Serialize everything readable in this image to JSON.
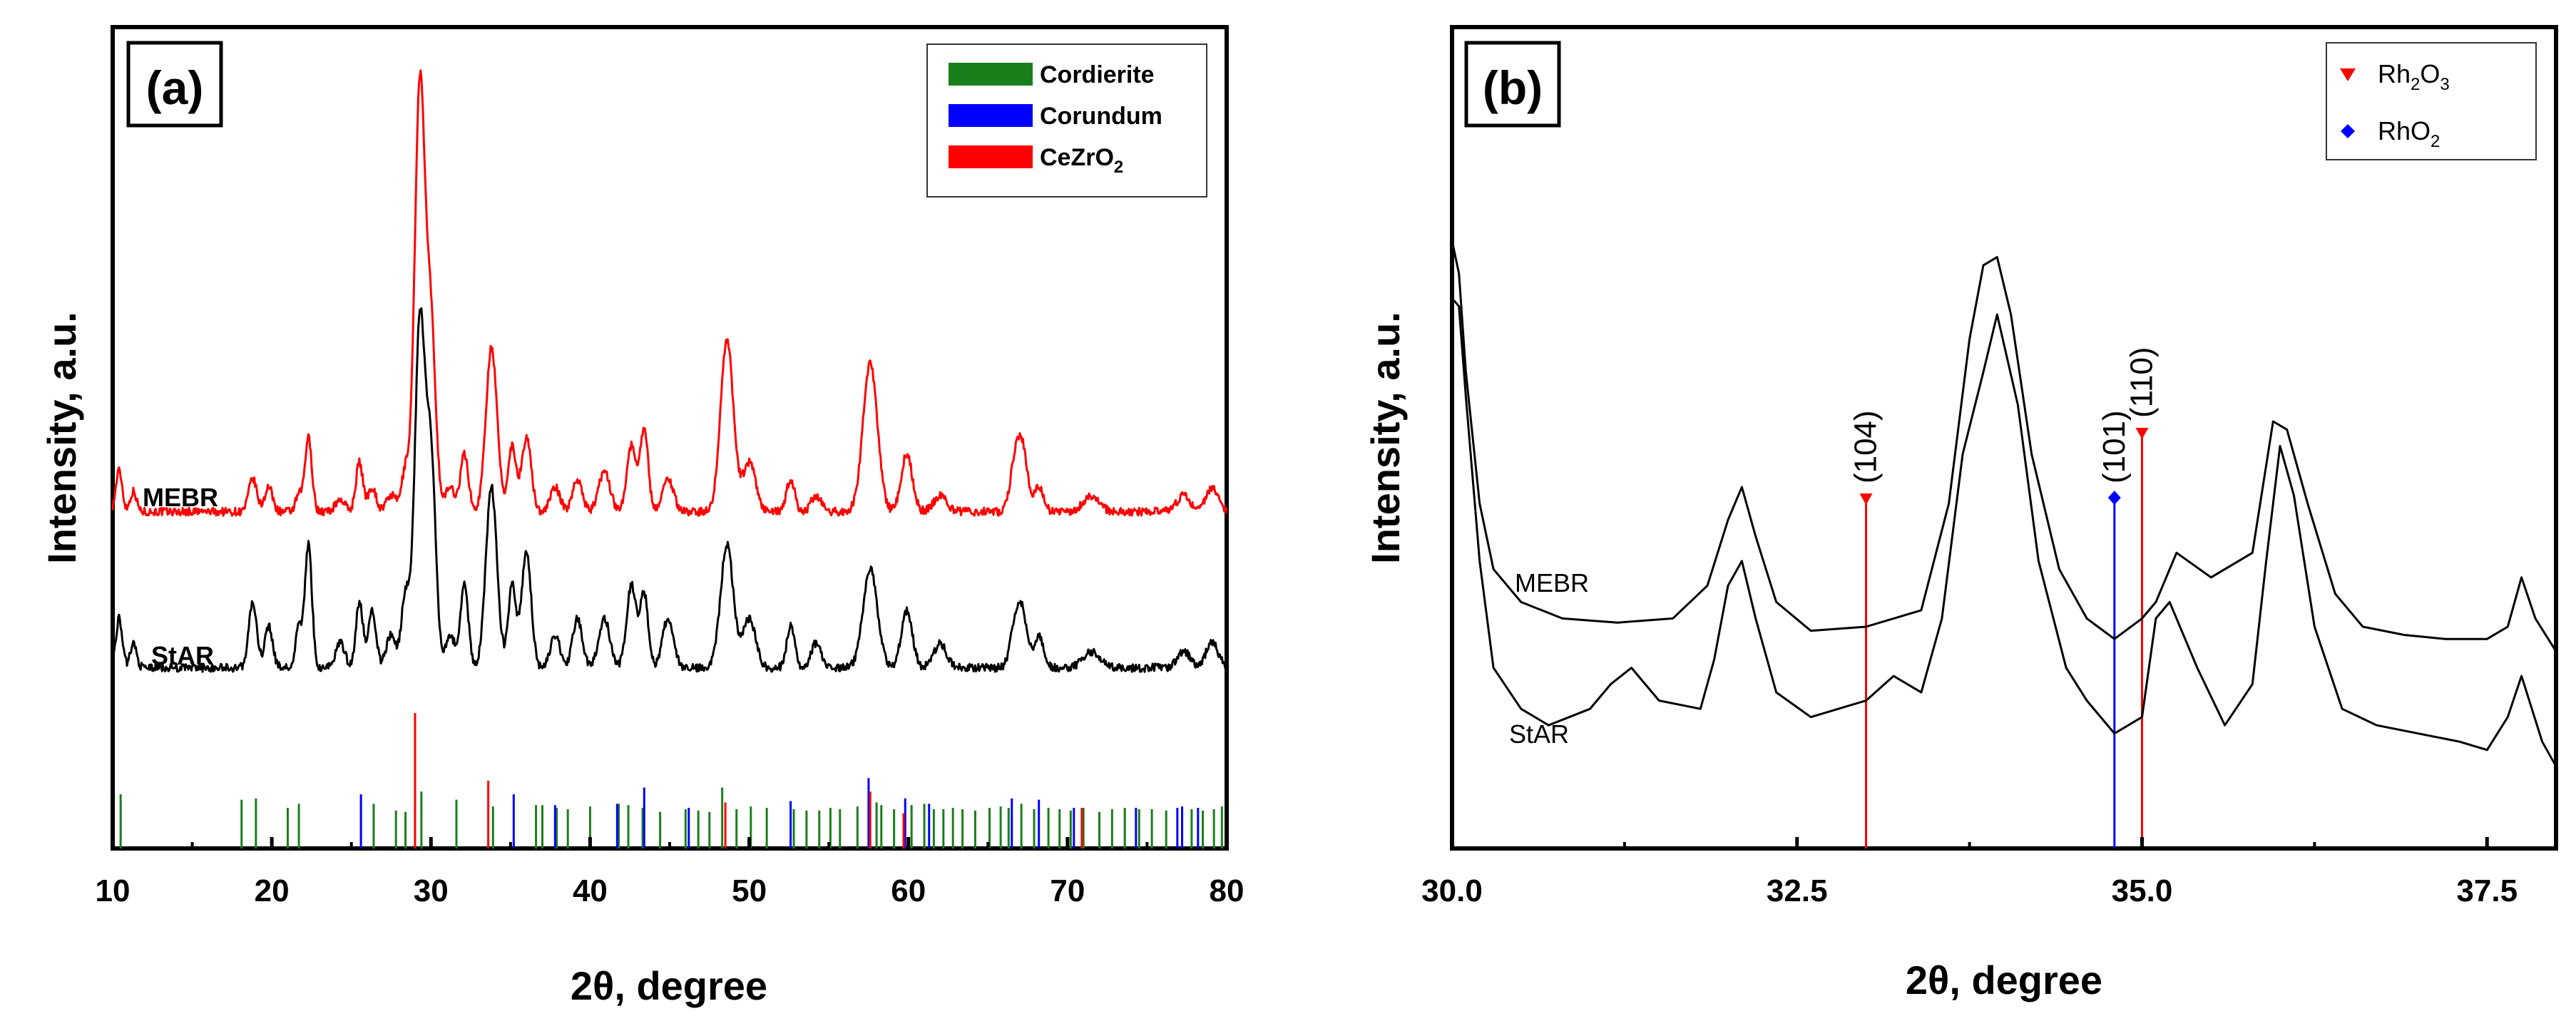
{
  "chart_data": [
    {
      "type": "line",
      "panel_label": "(a)",
      "xlabel": "2θ, degree",
      "ylabel": "Intensity, a.u.",
      "xlim": [
        10,
        80
      ],
      "ylim": [
        0,
        100
      ],
      "xticks": [
        10,
        20,
        30,
        40,
        50,
        60,
        70,
        80
      ],
      "xtick_labels": [
        "10",
        "20",
        "30",
        "40",
        "50",
        "60",
        "70",
        "80"
      ],
      "legend": [
        {
          "name": "Cordierite",
          "color": "#1a7f1a"
        },
        {
          "name": "Corundum",
          "color": "#0000ff"
        },
        {
          "name": "CeZrO",
          "sub": "2",
          "color": "#ff0000"
        }
      ],
      "legend_position": "top-right",
      "series": [
        {
          "name": "MEBR",
          "color": "#ff0000",
          "baseline": 41,
          "peaks": [
            [
              10.4,
              5,
              0.2
            ],
            [
              11.3,
              2.5,
              0.2
            ],
            [
              18.8,
              4,
              0.25
            ],
            [
              19.8,
              3,
              0.25
            ],
            [
              21.7,
              2,
              0.2
            ],
            [
              22.3,
              9,
              0.22
            ],
            [
              24.3,
              1.5,
              0.3
            ],
            [
              25.5,
              6,
              0.22
            ],
            [
              26.3,
              3,
              0.25
            ],
            [
              27.5,
              2,
              0.3
            ],
            [
              28.4,
              5,
              0.25
            ],
            [
              29.3,
              52,
              0.32
            ],
            [
              30.0,
              22,
              0.3
            ],
            [
              31.2,
              3,
              0.3
            ],
            [
              32.1,
              7,
              0.25
            ],
            [
              33.8,
              20,
              0.35
            ],
            [
              35.1,
              8,
              0.25
            ],
            [
              36.0,
              9,
              0.3
            ],
            [
              37.8,
              3,
              0.3
            ],
            [
              39.2,
              4,
              0.3
            ],
            [
              40.9,
              5,
              0.35
            ],
            [
              42.6,
              8,
              0.3
            ],
            [
              43.4,
              10,
              0.25
            ],
            [
              44.9,
              4,
              0.35
            ],
            [
              48.6,
              21,
              0.4
            ],
            [
              50.0,
              6,
              0.4
            ],
            [
              52.6,
              4,
              0.25
            ],
            [
              54.2,
              2,
              0.3
            ],
            [
              57.6,
              18,
              0.45
            ],
            [
              59.9,
              7,
              0.35
            ],
            [
              62.0,
              2,
              0.4
            ],
            [
              66.7,
              6,
              0.3
            ],
            [
              67.2,
              7,
              0.3
            ],
            [
              68.2,
              3,
              0.3
            ],
            [
              71.5,
              2,
              0.5
            ],
            [
              77.3,
              2,
              0.4
            ],
            [
              79.1,
              3,
              0.4
            ]
          ]
        },
        {
          "name": "StAR",
          "color": "#000000",
          "baseline": 22,
          "peaks": [
            [
              10.4,
              6,
              0.2
            ],
            [
              11.3,
              3,
              0.2
            ],
            [
              18.8,
              8,
              0.25
            ],
            [
              19.8,
              5,
              0.25
            ],
            [
              21.7,
              5,
              0.2
            ],
            [
              22.3,
              15,
              0.22
            ],
            [
              24.3,
              3,
              0.3
            ],
            [
              25.5,
              8,
              0.22
            ],
            [
              26.3,
              7,
              0.25
            ],
            [
              27.5,
              4,
              0.3
            ],
            [
              28.4,
              9,
              0.25
            ],
            [
              29.3,
              42,
              0.32
            ],
            [
              30.0,
              25,
              0.3
            ],
            [
              31.2,
              4,
              0.3
            ],
            [
              32.1,
              10,
              0.25
            ],
            [
              33.8,
              22,
              0.35
            ],
            [
              35.1,
              10,
              0.25
            ],
            [
              36.0,
              14,
              0.3
            ],
            [
              37.8,
              4,
              0.3
            ],
            [
              39.2,
              6,
              0.3
            ],
            [
              40.9,
              6,
              0.35
            ],
            [
              42.6,
              10,
              0.3
            ],
            [
              43.4,
              9,
              0.25
            ],
            [
              44.9,
              6,
              0.35
            ],
            [
              48.6,
              15,
              0.4
            ],
            [
              50.0,
              6,
              0.4
            ],
            [
              52.6,
              5,
              0.25
            ],
            [
              54.2,
              3,
              0.3
            ],
            [
              57.6,
              12,
              0.45
            ],
            [
              59.9,
              7,
              0.35
            ],
            [
              62.0,
              3,
              0.4
            ],
            [
              66.7,
              5,
              0.3
            ],
            [
              67.2,
              6,
              0.3
            ],
            [
              68.2,
              4,
              0.3
            ],
            [
              71.5,
              2,
              0.5
            ],
            [
              77.3,
              2,
              0.4
            ],
            [
              79.1,
              3,
              0.4
            ]
          ]
        }
      ],
      "reference_lines": [
        {
          "phase": "Cordierite",
          "color": "#1a7f1a",
          "positions": [
            10.5,
            18.1,
            19.0,
            21.0,
            21.7,
            26.4,
            27.8,
            28.4,
            29.4,
            31.6,
            33.9,
            36.6,
            37.0,
            37.9,
            38.6,
            40.0,
            41.8,
            42.4,
            43.3,
            44.4,
            46.0,
            46.8,
            47.5,
            48.3,
            49.2,
            50.1,
            51.1,
            52.8,
            53.6,
            54.4,
            55.1,
            55.7,
            56.8,
            57.5,
            58.0,
            58.3,
            59.1,
            60.2,
            61.0,
            61.6,
            62.2,
            62.8,
            63.4,
            64.2,
            65.1,
            65.8,
            66.3,
            67.1,
            67.9,
            68.8,
            69.5,
            70.2,
            71.0,
            72.0,
            72.8,
            73.6,
            74.5,
            75.3,
            76.2,
            77.2,
            77.8,
            78.5,
            79.2,
            79.7
          ],
          "heights": [
            40,
            36,
            37,
            30,
            33,
            33,
            28,
            27,
            42,
            36,
            31,
            32,
            32,
            30,
            29,
            31,
            33,
            32,
            30,
            27,
            29,
            28,
            27,
            45,
            29,
            31,
            30,
            29,
            28,
            28,
            30,
            29,
            31,
            37,
            34,
            32,
            29,
            32,
            33,
            29,
            29,
            30,
            29,
            28,
            30,
            31,
            30,
            33,
            29,
            30,
            29,
            28,
            30,
            27,
            29,
            30,
            29,
            29,
            28,
            30,
            29,
            28,
            29,
            31
          ]
        },
        {
          "phase": "Corundum",
          "color": "#0000ff",
          "positions": [
            25.6,
            35.2,
            37.8,
            41.7,
            43.4,
            46.2,
            52.6,
            57.5,
            59.8,
            61.3,
            66.5,
            68.2,
            70.4,
            74.3,
            76.9,
            77.2,
            78.2
          ],
          "heights": [
            40,
            40,
            32,
            33,
            45,
            30,
            35,
            52,
            37,
            33,
            37,
            36,
            30,
            30,
            30,
            31,
            30
          ]
        },
        {
          "phase": "CeZrO2",
          "color": "#ff0000",
          "positions": [
            29.0,
            33.6,
            48.5,
            57.6,
            59.7,
            70.9
          ],
          "heights": [
            100,
            50,
            34,
            42,
            26,
            30
          ]
        }
      ]
    },
    {
      "type": "line",
      "panel_label": "(b)",
      "xlabel": "2θ, degree",
      "ylabel": "Intensity, a.u.",
      "xlim": [
        30,
        38
      ],
      "ylim": [
        0,
        100
      ],
      "xticks": [
        30.0,
        32.5,
        35.0,
        37.5
      ],
      "xtick_labels": [
        "30.0",
        "32.5",
        "35.0",
        "37.5"
      ],
      "legend": [
        {
          "name": "Rh",
          "sub": "2",
          "name2": "O",
          "sub2": "3",
          "color": "#ff0000",
          "marker": "triangle-down"
        },
        {
          "name": "RhO",
          "sub": "2",
          "color": "#0000ff",
          "marker": "diamond"
        }
      ],
      "legend_position": "top-right",
      "series": [
        {
          "name": "MEBR",
          "color": "#000000",
          "points": [
            [
              30.0,
              74
            ],
            [
              30.05,
              70
            ],
            [
              30.1,
              58
            ],
            [
              30.2,
              42
            ],
            [
              30.3,
              34
            ],
            [
              30.5,
              30
            ],
            [
              30.8,
              28
            ],
            [
              31.2,
              27.5
            ],
            [
              31.6,
              28
            ],
            [
              31.85,
              32
            ],
            [
              32.0,
              40
            ],
            [
              32.1,
              44
            ],
            [
              32.2,
              38
            ],
            [
              32.35,
              30
            ],
            [
              32.6,
              26.5
            ],
            [
              33.0,
              27
            ],
            [
              33.4,
              29
            ],
            [
              33.6,
              42
            ],
            [
              33.75,
              62
            ],
            [
              33.85,
              71
            ],
            [
              33.95,
              72
            ],
            [
              34.05,
              65
            ],
            [
              34.2,
              48
            ],
            [
              34.4,
              34
            ],
            [
              34.6,
              28
            ],
            [
              34.8,
              25.5
            ],
            [
              35.0,
              28
            ],
            [
              35.1,
              30
            ],
            [
              35.25,
              36
            ],
            [
              35.5,
              33
            ],
            [
              35.8,
              36
            ],
            [
              35.95,
              52
            ],
            [
              36.05,
              51
            ],
            [
              36.2,
              42
            ],
            [
              36.4,
              31
            ],
            [
              36.6,
              27
            ],
            [
              36.9,
              26
            ],
            [
              37.2,
              25.5
            ],
            [
              37.5,
              25.5
            ],
            [
              37.65,
              27
            ],
            [
              37.75,
              33
            ],
            [
              37.85,
              28
            ],
            [
              38.0,
              24
            ]
          ]
        },
        {
          "name": "StAR",
          "color": "#000000",
          "points": [
            [
              30.0,
              67
            ],
            [
              30.05,
              66
            ],
            [
              30.1,
              55
            ],
            [
              30.2,
              35
            ],
            [
              30.3,
              22
            ],
            [
              30.5,
              17
            ],
            [
              30.7,
              15
            ],
            [
              31.0,
              17
            ],
            [
              31.15,
              20
            ],
            [
              31.3,
              22
            ],
            [
              31.5,
              18
            ],
            [
              31.8,
              17
            ],
            [
              31.9,
              23
            ],
            [
              32.0,
              32
            ],
            [
              32.1,
              35
            ],
            [
              32.2,
              28
            ],
            [
              32.35,
              19
            ],
            [
              32.6,
              16
            ],
            [
              33.0,
              18
            ],
            [
              33.2,
              21
            ],
            [
              33.4,
              19
            ],
            [
              33.55,
              28
            ],
            [
              33.7,
              48
            ],
            [
              33.85,
              58
            ],
            [
              33.95,
              65
            ],
            [
              34.1,
              54
            ],
            [
              34.25,
              35
            ],
            [
              34.45,
              22
            ],
            [
              34.6,
              18
            ],
            [
              34.8,
              14
            ],
            [
              35.0,
              16
            ],
            [
              35.1,
              28
            ],
            [
              35.2,
              30
            ],
            [
              35.4,
              22
            ],
            [
              35.6,
              15
            ],
            [
              35.8,
              20
            ],
            [
              35.9,
              35
            ],
            [
              36.0,
              49
            ],
            [
              36.1,
              43
            ],
            [
              36.25,
              27
            ],
            [
              36.45,
              17
            ],
            [
              36.7,
              15
            ],
            [
              37.0,
              14
            ],
            [
              37.3,
              13
            ],
            [
              37.5,
              12
            ],
            [
              37.65,
              16
            ],
            [
              37.75,
              21
            ],
            [
              37.9,
              13
            ],
            [
              38.0,
              10
            ]
          ]
        }
      ],
      "reference_lines": [
        {
          "phase": "Rh2O3",
          "hkl": "(104)",
          "x": 33.0,
          "height": 42,
          "color": "#ff0000",
          "marker": "triangle-down"
        },
        {
          "phase": "RhO2",
          "hkl": "(101)",
          "x": 34.8,
          "height": 42,
          "color": "#0000ff",
          "marker": "diamond"
        },
        {
          "phase": "Rh2O3",
          "hkl": "(110)",
          "x": 35.0,
          "height": 50,
          "color": "#ff0000",
          "marker": "triangle-down"
        }
      ]
    }
  ]
}
